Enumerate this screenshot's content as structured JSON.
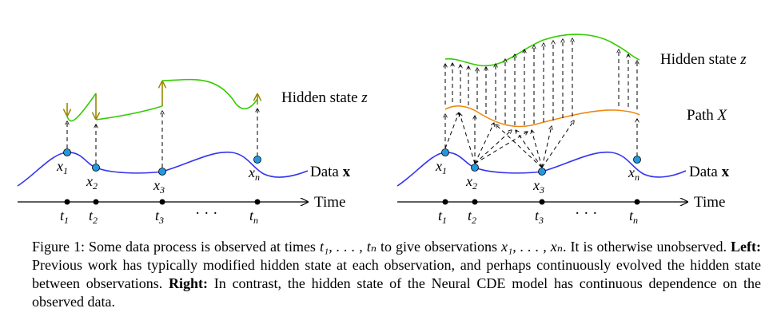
{
  "left": {
    "hidden_label": "Hidden state",
    "hidden_var": "z",
    "data_label": "Data",
    "data_var": "x",
    "time_label": "Time",
    "obs": [
      "x",
      "x",
      "x",
      "x"
    ],
    "obs_sub": [
      "1",
      "2",
      "3",
      "n"
    ],
    "times": [
      "t",
      "t",
      "t",
      "t"
    ],
    "times_sub": [
      "1",
      "2",
      "3",
      "n"
    ],
    "ellipsis": "· · ·"
  },
  "right": {
    "hidden_label": "Hidden state",
    "hidden_var": "z",
    "path_label": "Path",
    "path_var": "X",
    "data_label": "Data",
    "data_var": "x",
    "time_label": "Time",
    "obs": [
      "x",
      "x",
      "x",
      "x"
    ],
    "obs_sub": [
      "1",
      "2",
      "3",
      "n"
    ],
    "times": [
      "t",
      "t",
      "t",
      "t"
    ],
    "times_sub": [
      "1",
      "2",
      "3",
      "n"
    ],
    "ellipsis": "· · ·"
  },
  "caption": {
    "prefix": "Figure 1: Some data process is observed at times ",
    "times_seq": "t₁, . . . , tₙ",
    "mid": " to give observations ",
    "obs_seq": "x₁, . . . , xₙ",
    "after": ". It is otherwise unobserved. ",
    "left_bold": "Left:",
    "left_text": " Previous work has typically modified hidden state at each observation, and perhaps continuously evolved the hidden state between observations. ",
    "right_bold": "Right:",
    "right_text": " In contrast, the hidden state of the Neural CDE model has continuous dependence on the observed data."
  },
  "colors": {
    "data": "#3333ee",
    "hidden": "#33cc00",
    "jump": "#998800",
    "path": "#ee8811",
    "point": "#2299dd"
  }
}
